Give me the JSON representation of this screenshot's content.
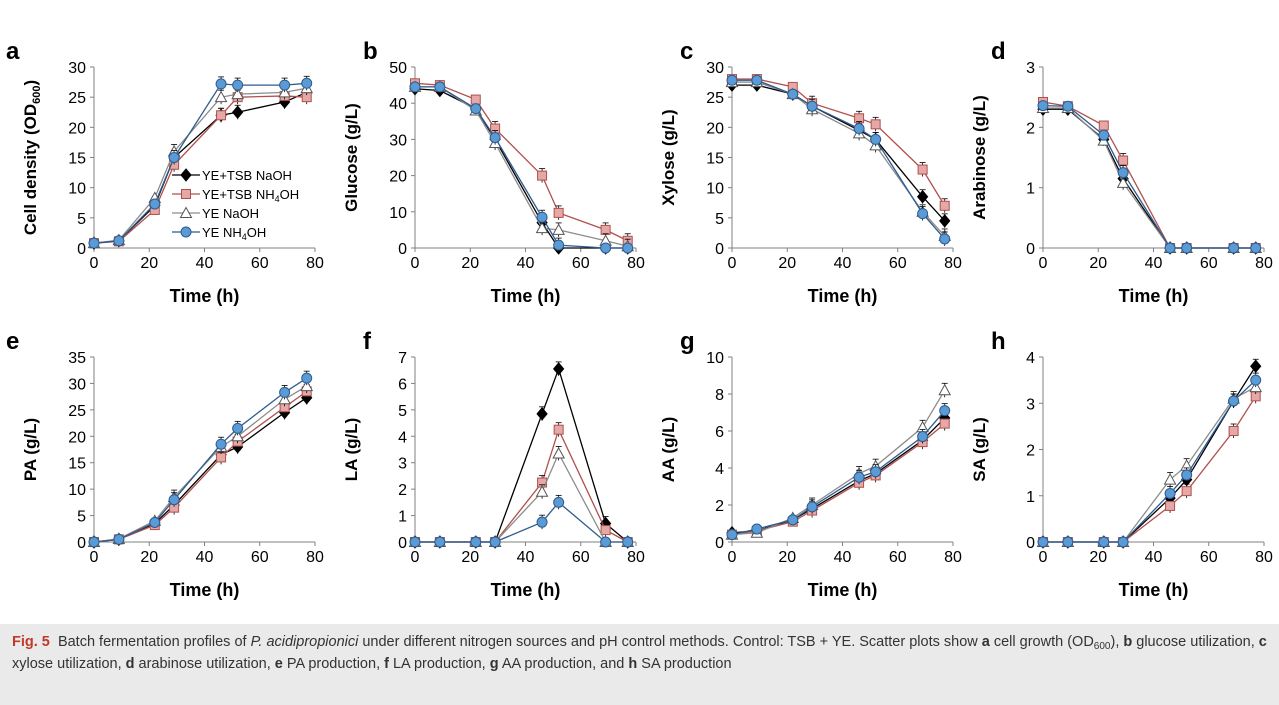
{
  "figure": {
    "legend": [
      {
        "label": "YE+TSB NaOH",
        "main": "YE+TSB NaOH",
        "sub": ""
      },
      {
        "label": "YE+TSB NH4OH",
        "main": "YE+TSB NH",
        "sub": "4",
        "tail": "OH"
      },
      {
        "label": "YE NaOH",
        "main": "YE NaOH",
        "sub": ""
      },
      {
        "label": "YE NH4OH",
        "main": "YE NH",
        "sub": "4",
        "tail": "OH"
      }
    ],
    "series_style": [
      {
        "color": "#000000",
        "fill": "#000000",
        "marker": "diamond"
      },
      {
        "color": "#b0504c",
        "fill": "#e4a8a6",
        "marker": "square"
      },
      {
        "color": "#8c8c8c",
        "fill": "#ffffff",
        "marker": "triangle"
      },
      {
        "color": "#2e5b8e",
        "fill": "#5b9bd5",
        "marker": "circle"
      }
    ]
  },
  "caption": {
    "fig_label": "Fig. 5",
    "text_1": "Batch fermentation profiles of ",
    "organism": "P. acidipropionici",
    "text_2": " under different nitrogen sources and pH control methods. Control: TSB + YE. Scatter plots show ",
    "parts": [
      {
        "letter": "a",
        "text": " cell growth (OD",
        "sub": "600",
        "after": "), "
      },
      {
        "letter": "b",
        "text": " glucose utilization, "
      },
      {
        "letter": "c",
        "text": " xylose utilization, "
      },
      {
        "letter": "d",
        "text": " arabinose utilization, "
      },
      {
        "letter": "e",
        "text": " PA production, "
      },
      {
        "letter": "f",
        "text": " LA production, "
      },
      {
        "letter": "g",
        "text": " AA production, and "
      },
      {
        "letter": "h",
        "text": " SA production"
      }
    ]
  },
  "chart_data": [
    {
      "panel": "a",
      "type": "scatter",
      "xlabel": "Time (h)",
      "ylabel": "Cell density (OD600)",
      "ylabel_main": "Cell density (OD",
      "ylabel_sub": "600",
      "ylabel_tail": ")",
      "xlim": [
        0,
        80
      ],
      "ylim": [
        0,
        30
      ],
      "xticks": [
        0,
        20,
        40,
        60,
        80
      ],
      "yticks": [
        0,
        5,
        10,
        15,
        20,
        25,
        30
      ],
      "grid": false,
      "legend": "inside",
      "x": [
        0,
        9,
        22,
        29,
        46,
        52,
        69,
        77
      ],
      "series": [
        {
          "name": "YE+TSB NaOH",
          "values": [
            0.8,
            1.2,
            7.0,
            15.0,
            22.0,
            22.5,
            24.2,
            25.8
          ]
        },
        {
          "name": "YE+TSB NH4OH",
          "values": [
            0.8,
            1.1,
            6.3,
            13.8,
            22.0,
            25.0,
            25.2,
            25.0
          ]
        },
        {
          "name": "YE NaOH",
          "values": [
            0.8,
            1.3,
            8.3,
            16.0,
            25.0,
            25.5,
            25.8,
            26.5
          ]
        },
        {
          "name": "YE NH4OH",
          "values": [
            0.8,
            1.2,
            7.3,
            15.0,
            27.2,
            27.0,
            27.0,
            27.3
          ]
        }
      ]
    },
    {
      "panel": "b",
      "type": "scatter",
      "xlabel": "Time (h)",
      "ylabel": "Glucose (g/L)",
      "xlim": [
        0,
        80
      ],
      "ylim": [
        0,
        50
      ],
      "xticks": [
        0,
        20,
        40,
        60,
        80
      ],
      "yticks": [
        0,
        10,
        20,
        30,
        40,
        50
      ],
      "grid": false,
      "x": [
        0,
        9,
        22,
        29,
        46,
        52,
        69,
        77
      ],
      "series": [
        {
          "name": "YE+TSB NaOH",
          "values": [
            44.0,
            43.5,
            38.5,
            30.0,
            7.0,
            0.0,
            0.0,
            0.0
          ]
        },
        {
          "name": "YE+TSB NH4OH",
          "values": [
            45.5,
            45.0,
            41.0,
            33.0,
            20.0,
            9.7,
            5.0,
            2.0
          ]
        },
        {
          "name": "YE NaOH",
          "values": [
            44.5,
            44.5,
            38.0,
            29.0,
            5.5,
            5.0,
            2.0,
            0.5
          ]
        },
        {
          "name": "YE NH4OH",
          "values": [
            44.5,
            44.5,
            38.5,
            30.5,
            8.5,
            0.8,
            0.0,
            0.0
          ]
        }
      ]
    },
    {
      "panel": "c",
      "type": "scatter",
      "xlabel": "Time (h)",
      "ylabel": "Xylose (g/L)",
      "xlim": [
        0,
        80
      ],
      "ylim": [
        0,
        30
      ],
      "xticks": [
        0,
        20,
        40,
        60,
        80
      ],
      "yticks": [
        0,
        5,
        10,
        15,
        20,
        25,
        30
      ],
      "grid": false,
      "x": [
        0,
        9,
        22,
        29,
        46,
        52,
        69,
        77
      ],
      "series": [
        {
          "name": "YE+TSB NaOH",
          "values": [
            27.0,
            27.0,
            25.5,
            23.5,
            19.5,
            18.0,
            8.5,
            4.5
          ]
        },
        {
          "name": "YE+TSB NH4OH",
          "values": [
            28.0,
            28.0,
            26.7,
            24.0,
            21.5,
            20.5,
            13.0,
            7.0
          ]
        },
        {
          "name": "YE NaOH",
          "values": [
            27.5,
            27.5,
            25.5,
            23.0,
            19.0,
            17.0,
            6.0,
            2.0
          ]
        },
        {
          "name": "YE NH4OH",
          "values": [
            27.8,
            27.8,
            25.5,
            23.5,
            19.8,
            18.0,
            5.7,
            1.5
          ]
        }
      ]
    },
    {
      "panel": "d",
      "type": "scatter",
      "xlabel": "Time (h)",
      "ylabel": "Arabinose (g/L)",
      "xlim": [
        0,
        80
      ],
      "ylim": [
        0,
        3
      ],
      "xticks": [
        0,
        20,
        40,
        60,
        80
      ],
      "yticks": [
        0,
        1,
        2,
        3
      ],
      "grid": false,
      "x": [
        0,
        9,
        22,
        29,
        46,
        52,
        69,
        77
      ],
      "series": [
        {
          "name": "YE+TSB NaOH",
          "values": [
            2.3,
            2.3,
            1.8,
            1.15,
            0.0,
            0.0,
            0.0,
            0.0
          ]
        },
        {
          "name": "YE+TSB NH4OH",
          "values": [
            2.42,
            2.35,
            2.03,
            1.45,
            0.0,
            0.0,
            0.0,
            0.0
          ]
        },
        {
          "name": "YE NaOH",
          "values": [
            2.32,
            2.32,
            1.78,
            1.08,
            0.0,
            0.0,
            0.0,
            0.0
          ]
        },
        {
          "name": "YE NH4OH",
          "values": [
            2.36,
            2.35,
            1.87,
            1.25,
            0.0,
            0.0,
            0.0,
            0.0
          ]
        }
      ]
    },
    {
      "panel": "e",
      "type": "scatter",
      "xlabel": "Time (h)",
      "ylabel": "PA (g/L)",
      "xlim": [
        0,
        80
      ],
      "ylim": [
        0,
        35
      ],
      "xticks": [
        0,
        20,
        40,
        60,
        80
      ],
      "yticks": [
        0,
        5,
        10,
        15,
        20,
        25,
        30,
        35
      ],
      "grid": false,
      "x": [
        0,
        9,
        22,
        29,
        46,
        52,
        69,
        77
      ],
      "series": [
        {
          "name": "YE+TSB NaOH",
          "values": [
            0.0,
            0.5,
            3.5,
            7.0,
            16.5,
            18.0,
            24.5,
            27.3
          ]
        },
        {
          "name": "YE+TSB NH4OH",
          "values": [
            0.0,
            0.5,
            3.2,
            6.5,
            16.0,
            19.0,
            25.5,
            28.5
          ]
        },
        {
          "name": "YE NaOH",
          "values": [
            0.0,
            0.6,
            4.0,
            8.5,
            18.0,
            20.0,
            27.0,
            29.5
          ]
        },
        {
          "name": "YE NH4OH",
          "values": [
            0.0,
            0.5,
            3.7,
            8.0,
            18.5,
            21.5,
            28.3,
            31.0
          ]
        }
      ]
    },
    {
      "panel": "f",
      "type": "scatter",
      "xlabel": "Time (h)",
      "ylabel": "LA (g/L)",
      "xlim": [
        0,
        80
      ],
      "ylim": [
        0,
        7
      ],
      "xticks": [
        0,
        20,
        40,
        60,
        80
      ],
      "yticks": [
        0,
        1,
        2,
        3,
        4,
        5,
        6,
        7
      ],
      "grid": false,
      "x": [
        0,
        9,
        22,
        29,
        46,
        52,
        69,
        77
      ],
      "series": [
        {
          "name": "YE+TSB NaOH",
          "values": [
            0.0,
            0.0,
            0.0,
            0.0,
            4.85,
            6.55,
            0.7,
            0.0
          ]
        },
        {
          "name": "YE+TSB NH4OH",
          "values": [
            0.0,
            0.0,
            0.0,
            0.0,
            2.25,
            4.25,
            0.45,
            0.0
          ]
        },
        {
          "name": "YE NaOH",
          "values": [
            0.0,
            0.0,
            0.0,
            0.0,
            1.9,
            3.35,
            0.0,
            0.0
          ]
        },
        {
          "name": "YE NH4OH",
          "values": [
            0.0,
            0.0,
            0.0,
            0.0,
            0.75,
            1.5,
            0.0,
            0.0
          ]
        }
      ]
    },
    {
      "panel": "g",
      "type": "scatter",
      "xlabel": "Time (h)",
      "ylabel": "AA (g/L)",
      "xlim": [
        0,
        80
      ],
      "ylim": [
        0,
        10
      ],
      "xticks": [
        0,
        20,
        40,
        60,
        80
      ],
      "yticks": [
        0,
        2,
        4,
        6,
        8,
        10
      ],
      "grid": false,
      "x": [
        0,
        9,
        22,
        29,
        46,
        52,
        69,
        77
      ],
      "series": [
        {
          "name": "YE+TSB NaOH",
          "values": [
            0.5,
            0.6,
            1.2,
            1.8,
            3.3,
            3.7,
            5.5,
            6.7
          ]
        },
        {
          "name": "YE+TSB NH4OH",
          "values": [
            0.4,
            0.6,
            1.1,
            1.7,
            3.2,
            3.6,
            5.4,
            6.4
          ]
        },
        {
          "name": "YE NaOH",
          "values": [
            0.4,
            0.5,
            1.3,
            2.0,
            3.7,
            4.1,
            6.2,
            8.2
          ]
        },
        {
          "name": "YE NH4OH",
          "values": [
            0.4,
            0.7,
            1.2,
            1.9,
            3.5,
            3.8,
            5.7,
            7.1
          ]
        }
      ]
    },
    {
      "panel": "h",
      "type": "scatter",
      "xlabel": "Time (h)",
      "ylabel": "SA (g/L)",
      "xlim": [
        0,
        80
      ],
      "ylim": [
        0,
        4
      ],
      "xticks": [
        0,
        20,
        40,
        60,
        80
      ],
      "yticks": [
        0,
        1,
        2,
        3,
        4
      ],
      "grid": false,
      "x": [
        0,
        9,
        22,
        29,
        46,
        52,
        69,
        77
      ],
      "series": [
        {
          "name": "YE+TSB NaOH",
          "values": [
            0.0,
            0.0,
            0.0,
            0.0,
            0.95,
            1.35,
            3.05,
            3.8
          ]
        },
        {
          "name": "YE+TSB NH4OH",
          "values": [
            0.0,
            0.0,
            0.0,
            0.0,
            0.78,
            1.1,
            2.4,
            3.15
          ]
        },
        {
          "name": "YE NaOH",
          "values": [
            0.0,
            0.0,
            0.0,
            0.0,
            1.35,
            1.65,
            3.1,
            3.35
          ]
        },
        {
          "name": "YE NH4OH",
          "values": [
            0.0,
            0.0,
            0.0,
            0.0,
            1.05,
            1.45,
            3.05,
            3.5
          ]
        }
      ]
    }
  ]
}
